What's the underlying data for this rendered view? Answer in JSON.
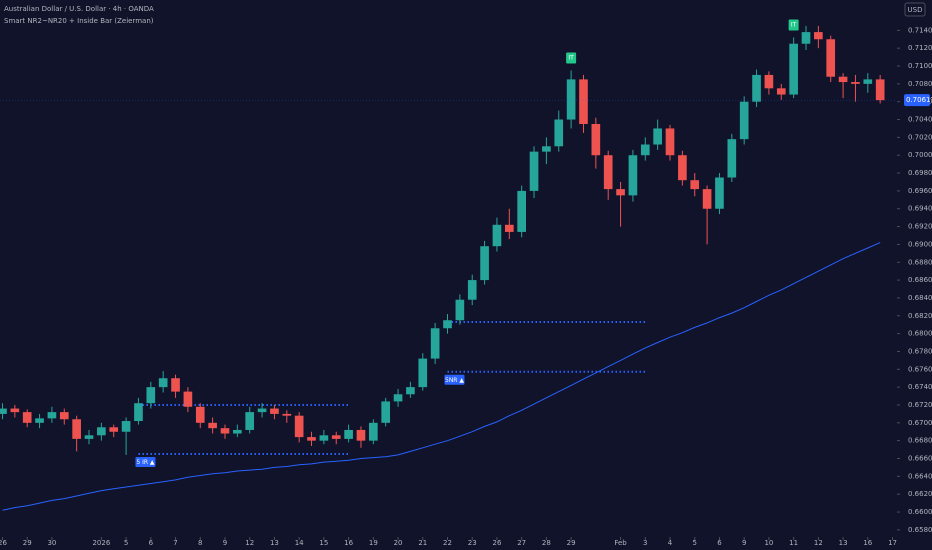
{
  "chart_data": {
    "type": "candlestick",
    "title": "Australian Dollar / U.S. Dollar · 4h · OANDA",
    "subtitle": "Smart NR2~NR20 + Inside Bar (Zeierman)",
    "currency": "USD",
    "up_color": "#26a69a",
    "down_color": "#ef5350",
    "open": [
      0.671,
      0.6716,
      0.6712,
      0.67,
      0.6705,
      0.6712,
      0.6704,
      0.6682,
      0.6686,
      0.6695,
      0.669,
      0.6702,
      0.6722,
      0.674,
      0.675,
      0.6735,
      0.6718,
      0.67,
      0.6694,
      0.6688,
      0.6692,
      0.6712,
      0.6716,
      0.671,
      0.6708,
      0.6684,
      0.668,
      0.6686,
      0.6682,
      0.6692,
      0.668,
      0.67,
      0.6724,
      0.6732,
      0.674,
      0.6772,
      0.6806,
      0.6815,
      0.6838,
      0.686,
      0.6898,
      0.6922,
      0.6914,
      0.696,
      0.7004,
      0.701,
      0.704,
      0.7085,
      0.7035,
      0.7,
      0.6962,
      0.6955,
      0.7,
      0.7012,
      0.703,
      0.7,
      0.6972,
      0.6962,
      0.694,
      0.6975,
      0.7018,
      0.706,
      0.709,
      0.7075,
      0.7068,
      0.7125,
      0.7138,
      0.713,
      0.7088,
      0.7082,
      0.708,
      0.7085
    ],
    "high": [
      0.6722,
      0.672,
      0.6715,
      0.671,
      0.6718,
      0.6716,
      0.6708,
      0.6692,
      0.67,
      0.6698,
      0.6706,
      0.6728,
      0.6746,
      0.6758,
      0.6754,
      0.674,
      0.6722,
      0.6706,
      0.6698,
      0.6698,
      0.6718,
      0.6722,
      0.672,
      0.6714,
      0.6712,
      0.669,
      0.6692,
      0.669,
      0.6698,
      0.6696,
      0.6704,
      0.6728,
      0.6738,
      0.6746,
      0.6778,
      0.6812,
      0.6822,
      0.6844,
      0.6866,
      0.6904,
      0.693,
      0.694,
      0.6966,
      0.701,
      0.702,
      0.705,
      0.7095,
      0.709,
      0.7042,
      0.7005,
      0.697,
      0.7006,
      0.702,
      0.704,
      0.7034,
      0.7005,
      0.698,
      0.6966,
      0.698,
      0.7024,
      0.7066,
      0.7096,
      0.7094,
      0.708,
      0.7132,
      0.7145,
      0.7145,
      0.7134,
      0.7092,
      0.709,
      0.7092,
      0.709
    ],
    "low": [
      0.6704,
      0.6706,
      0.6695,
      0.6694,
      0.67,
      0.6698,
      0.6668,
      0.6676,
      0.668,
      0.6684,
      0.6664,
      0.6698,
      0.6716,
      0.6734,
      0.6728,
      0.6712,
      0.6694,
      0.6688,
      0.6682,
      0.6684,
      0.6688,
      0.6706,
      0.6704,
      0.67,
      0.6678,
      0.6674,
      0.6676,
      0.6676,
      0.6678,
      0.6672,
      0.6676,
      0.6696,
      0.6718,
      0.6728,
      0.6736,
      0.6766,
      0.68,
      0.681,
      0.6832,
      0.6855,
      0.6892,
      0.6906,
      0.6908,
      0.6952,
      0.699,
      0.7004,
      0.703,
      0.7025,
      0.6985,
      0.695,
      0.692,
      0.6948,
      0.6994,
      0.7006,
      0.6994,
      0.6966,
      0.6954,
      0.69,
      0.6934,
      0.697,
      0.7012,
      0.7054,
      0.7068,
      0.7062,
      0.7064,
      0.7118,
      0.712,
      0.7082,
      0.7064,
      0.706,
      0.707,
      0.7058
    ],
    "close": [
      0.6716,
      0.6712,
      0.67,
      0.6705,
      0.6712,
      0.6704,
      0.6682,
      0.6686,
      0.6695,
      0.669,
      0.6702,
      0.6722,
      0.674,
      0.675,
      0.6735,
      0.6718,
      0.67,
      0.6694,
      0.6688,
      0.6692,
      0.6712,
      0.6716,
      0.671,
      0.6708,
      0.6684,
      0.668,
      0.6686,
      0.6682,
      0.6692,
      0.668,
      0.67,
      0.6724,
      0.6732,
      0.674,
      0.6772,
      0.6806,
      0.6815,
      0.6838,
      0.686,
      0.6898,
      0.6922,
      0.6914,
      0.696,
      0.7004,
      0.701,
      0.704,
      0.7085,
      0.7035,
      0.7,
      0.6962,
      0.6955,
      0.7,
      0.7012,
      0.703,
      0.7,
      0.6972,
      0.6962,
      0.694,
      0.6975,
      0.7018,
      0.706,
      0.709,
      0.7075,
      0.7068,
      0.7125,
      0.7138,
      0.713,
      0.7088,
      0.7082,
      0.708,
      0.7085,
      0.70617
    ],
    "ma": {
      "color": "#2962ff",
      "values": [
        0.6602,
        0.6605,
        0.6607,
        0.661,
        0.6613,
        0.6615,
        0.6618,
        0.6621,
        0.6624,
        0.6626,
        0.6628,
        0.663,
        0.6632,
        0.6634,
        0.6636,
        0.6639,
        0.6641,
        0.6643,
        0.6644,
        0.6646,
        0.6647,
        0.6648,
        0.665,
        0.6651,
        0.6653,
        0.6654,
        0.6656,
        0.6657,
        0.6658,
        0.666,
        0.6661,
        0.6662,
        0.6664,
        0.6668,
        0.6672,
        0.6676,
        0.668,
        0.6685,
        0.669,
        0.6696,
        0.6701,
        0.6708,
        0.6714,
        0.6721,
        0.6728,
        0.6735,
        0.6742,
        0.6749,
        0.6756,
        0.6763,
        0.677,
        0.6777,
        0.6784,
        0.679,
        0.6796,
        0.6801,
        0.6807,
        0.6812,
        0.6818,
        0.6823,
        0.6829,
        0.6836,
        0.6843,
        0.6849,
        0.6856,
        0.6863,
        0.687,
        0.6877,
        0.6884,
        0.689,
        0.6896,
        0.6902
      ]
    },
    "ranges": [
      {
        "label": "5 IR ▲",
        "high": 0.672,
        "low": 0.6665,
        "from": 11,
        "to": 28,
        "color": "#2962ff"
      },
      {
        "label": "5NR ▲",
        "high": 0.6813,
        "low": 0.67572,
        "from": 36,
        "to": 52,
        "color": "#2962ff"
      }
    ],
    "signals": [
      {
        "label": "IT",
        "at": 46,
        "color": "#22c88a"
      },
      {
        "label": "IT",
        "at": 64,
        "color": "#22c88a"
      }
    ],
    "last_price": {
      "value": 0.70617,
      "label": "0.70617"
    },
    "xlim": [
      -0.2,
      72.2
    ],
    "xticks": [
      {
        "value": 0,
        "label": "26"
      },
      {
        "value": 2,
        "label": "29"
      },
      {
        "value": 4,
        "label": "30"
      },
      {
        "value": 8,
        "label": "2026"
      },
      {
        "value": 10,
        "label": "5"
      },
      {
        "value": 12,
        "label": "6"
      },
      {
        "value": 14,
        "label": "7"
      },
      {
        "value": 16,
        "label": "8"
      },
      {
        "value": 18,
        "label": "9"
      },
      {
        "value": 20,
        "label": "12"
      },
      {
        "value": 22,
        "label": "13"
      },
      {
        "value": 24,
        "label": "14"
      },
      {
        "value": 26,
        "label": "15"
      },
      {
        "value": 28,
        "label": "16"
      },
      {
        "value": 30,
        "label": "19"
      },
      {
        "value": 32,
        "label": "20"
      },
      {
        "value": 34,
        "label": "21"
      },
      {
        "value": 36,
        "label": "22"
      },
      {
        "value": 38,
        "label": "23"
      },
      {
        "value": 40,
        "label": "26"
      },
      {
        "value": 42,
        "label": "27"
      },
      {
        "value": 44,
        "label": "28"
      },
      {
        "value": 46,
        "label": "29"
      },
      {
        "value": 50,
        "label": "Feb"
      },
      {
        "value": 52,
        "label": "3"
      },
      {
        "value": 54,
        "label": "4"
      },
      {
        "value": 56,
        "label": "5"
      },
      {
        "value": 58,
        "label": "6"
      },
      {
        "value": 60,
        "label": "9"
      },
      {
        "value": 62,
        "label": "10"
      },
      {
        "value": 64,
        "label": "11"
      },
      {
        "value": 66,
        "label": "12"
      },
      {
        "value": 68,
        "label": "13"
      },
      {
        "value": 70,
        "label": "16"
      },
      {
        "value": 72,
        "label": "17"
      }
    ],
    "ylim": [
      0.6572,
      0.7174
    ],
    "yticks": [
      {
        "value": 0.658,
        "label": "0.65800"
      },
      {
        "value": 0.66,
        "label": "0.66000"
      },
      {
        "value": 0.662,
        "label": "0.66200"
      },
      {
        "value": 0.664,
        "label": "0.66400"
      },
      {
        "value": 0.666,
        "label": "0.66600"
      },
      {
        "value": 0.668,
        "label": "0.66800"
      },
      {
        "value": 0.67,
        "label": "0.67000"
      },
      {
        "value": 0.672,
        "label": "0.67200"
      },
      {
        "value": 0.674,
        "label": "0.67400"
      },
      {
        "value": 0.676,
        "label": "0.67600"
      },
      {
        "value": 0.678,
        "label": "0.67800"
      },
      {
        "value": 0.68,
        "label": "0.68000"
      },
      {
        "value": 0.682,
        "label": "0.68200"
      },
      {
        "value": 0.684,
        "label": "0.68400"
      },
      {
        "value": 0.686,
        "label": "0.68600"
      },
      {
        "value": 0.688,
        "label": "0.68800"
      },
      {
        "value": 0.69,
        "label": "0.69000"
      },
      {
        "value": 0.692,
        "label": "0.69200"
      },
      {
        "value": 0.694,
        "label": "0.69400"
      },
      {
        "value": 0.696,
        "label": "0.69600"
      },
      {
        "value": 0.698,
        "label": "0.69800"
      },
      {
        "value": 0.7,
        "label": "0.70000"
      },
      {
        "value": 0.702,
        "label": "0.70200"
      },
      {
        "value": 0.704,
        "label": "0.70400"
      },
      {
        "value": 0.706,
        "label": "0.70600"
      },
      {
        "value": 0.708,
        "label": "0.70800"
      },
      {
        "value": 0.71,
        "label": "0.71000"
      },
      {
        "value": 0.712,
        "label": "0.71200"
      },
      {
        "value": 0.714,
        "label": "0.71400"
      }
    ]
  }
}
